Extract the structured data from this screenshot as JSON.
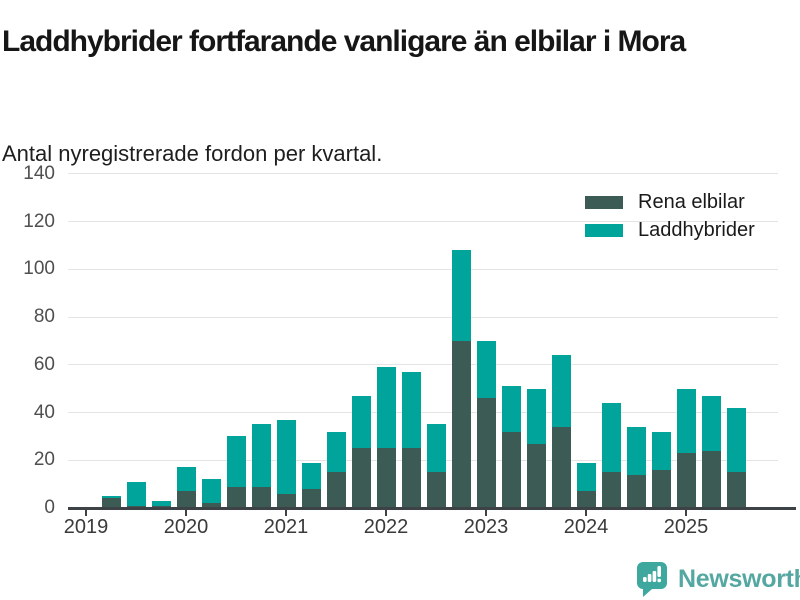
{
  "header": {
    "title": "Laddhybrider fortfarande vanligare än elbilar i Mora",
    "subtitle": "Antal nyregistrerade fordon per kvartal."
  },
  "chart_data": {
    "type": "bar",
    "stacked": true,
    "title": "Laddhybrider fortfarande vanligare än elbilar i Mora",
    "subtitle": "Antal nyregistrerade fordon per kvartal.",
    "categories": [
      "2019 K1",
      "2019 K2",
      "2019 K3",
      "2019 K4",
      "2020 K1",
      "2020 K2",
      "2020 K3",
      "2020 K4",
      "2021 K1",
      "2021 K2",
      "2021 K3",
      "2021 K4",
      "2022 K1",
      "2022 K2",
      "2022 K3",
      "2022 K4",
      "2023 K1",
      "2023 K2",
      "2023 K3",
      "2023 K4",
      "2024 K1",
      "2024 K2",
      "2024 K3",
      "2024 K4",
      "2025 K1",
      "2025 K2",
      "2025 K3"
    ],
    "series": [
      {
        "name": "Rena elbilar",
        "color": "#3b5b54",
        "values": [
          0,
          4,
          1,
          1,
          7,
          2,
          9,
          9,
          6,
          8,
          15,
          25,
          25,
          25,
          15,
          70,
          46,
          32,
          27,
          34,
          7,
          15,
          14,
          16,
          23,
          24,
          15
        ]
      },
      {
        "name": "Laddhybrider",
        "color": "#00a49b",
        "values": [
          0,
          1,
          10,
          2,
          10,
          10,
          21,
          26,
          31,
          11,
          17,
          22,
          34,
          32,
          20,
          38,
          24,
          19,
          23,
          30,
          12,
          29,
          20,
          16,
          27,
          23,
          27
        ]
      }
    ],
    "totals": [
      0,
      5,
      11,
      3,
      17,
      12,
      30,
      35,
      37,
      19,
      32,
      47,
      59,
      57,
      35,
      108,
      70,
      51,
      50,
      64,
      19,
      44,
      34,
      32,
      50,
      47,
      42
    ],
    "xlabel": "",
    "ylabel": "",
    "ylim": [
      0,
      140
    ],
    "yticks": [
      0,
      20,
      40,
      60,
      80,
      100,
      120,
      140
    ],
    "xticks": [
      "2019",
      "2020",
      "2021",
      "2022",
      "2023",
      "2024",
      "2025"
    ],
    "grid": "horizontal",
    "legend_position": "top-right"
  },
  "footer": {
    "brand": "Newsworthy",
    "logo_icon": "bar-chart-speech-bubble-icon",
    "brand_color": "#55a8a1",
    "icon_color": "#3ea89e"
  },
  "colors": {
    "elbilar": "#3b5b54",
    "laddhybrider": "#00a49b",
    "gridline": "#e4e4e4",
    "axis": "#3d4247"
  }
}
